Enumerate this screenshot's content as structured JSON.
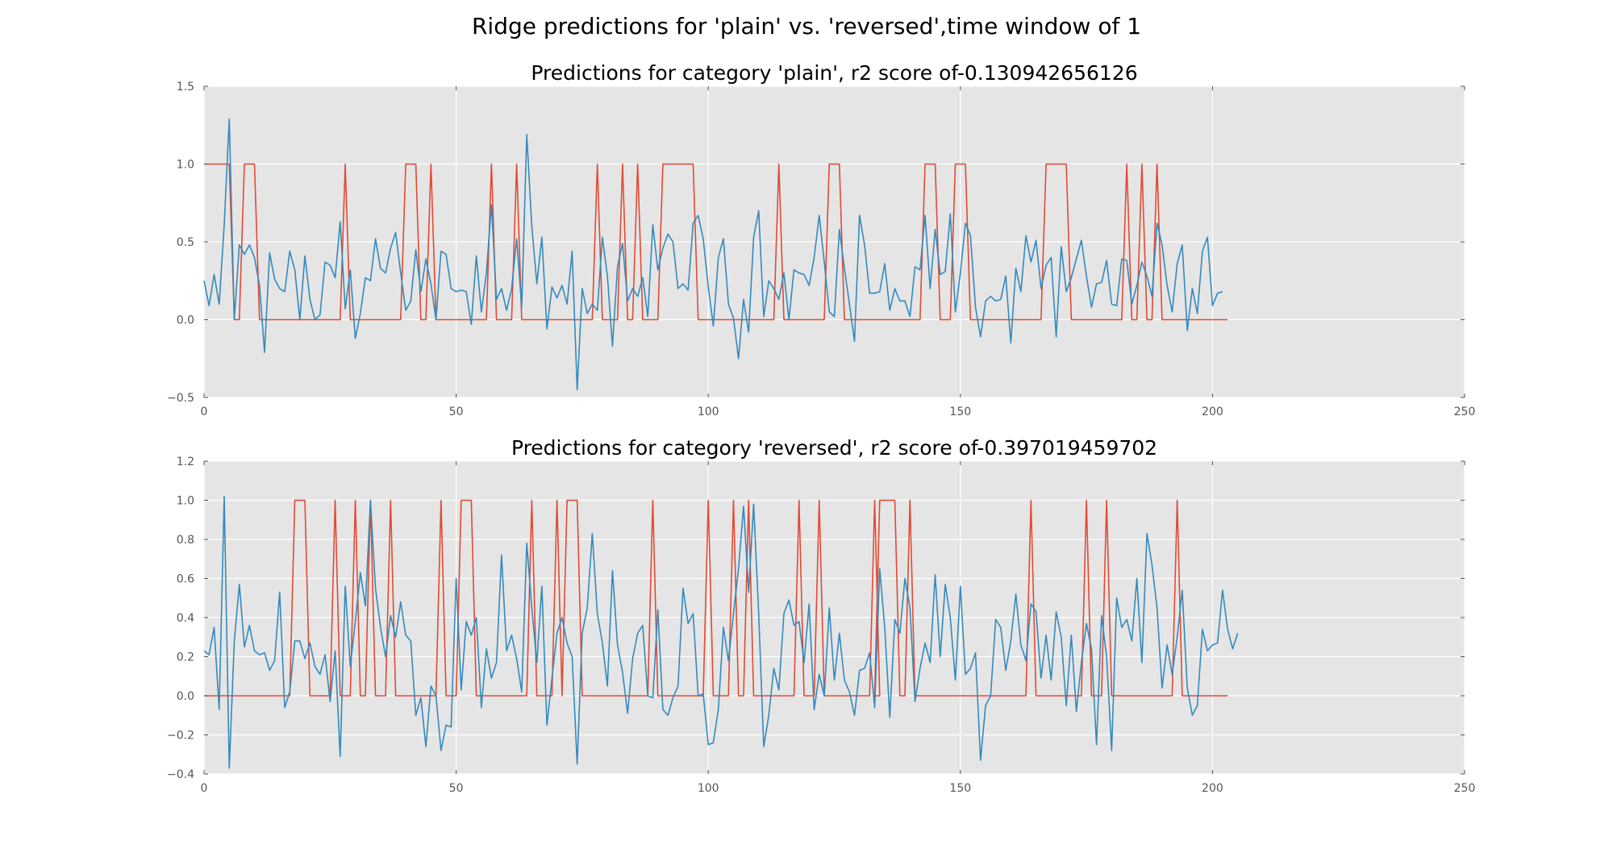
{
  "suptitle": "Ridge predictions for 'plain' vs. 'reversed',time window of 1",
  "colors": {
    "actual": "#e24a33",
    "predicted": "#348abd",
    "background": "#e5e5e5",
    "grid": "#ffffff"
  },
  "chart_data": [
    {
      "type": "line",
      "title": "Predictions for category 'plain', r2 score of-0.130942656126",
      "xlabel": "",
      "ylabel": "",
      "xlim": [
        0,
        250
      ],
      "ylim": [
        -0.5,
        1.5
      ],
      "xticks": [
        0,
        50,
        100,
        150,
        200,
        250
      ],
      "yticks": [
        -0.5,
        0.0,
        0.5,
        1.0,
        1.5
      ],
      "ytick_labels": [
        "−0.5",
        "0.0",
        "0.5",
        "1.0",
        "1.5"
      ],
      "xtick_labels": [
        "0",
        "50",
        "100",
        "150",
        "200",
        "250"
      ],
      "grid": true,
      "series": [
        {
          "color": "#e24a33",
          "step_intervals": [
            [
              0,
              5
            ],
            [
              7,
              10
            ],
            [
              27,
              28
            ],
            [
              39,
              42
            ],
            [
              44,
              45
            ],
            [
              56,
              57
            ],
            [
              61,
              62
            ],
            [
              77,
              78
            ],
            [
              82,
              83
            ],
            [
              85,
              86
            ],
            [
              90,
              97
            ],
            [
              113,
              114
            ],
            [
              123,
              126
            ],
            [
              142,
              145
            ],
            [
              148,
              151
            ],
            [
              166,
              171
            ],
            [
              182,
              183
            ],
            [
              185,
              186
            ],
            [
              188,
              189
            ]
          ],
          "x_end": 203
        },
        {
          "color": "#348abd",
          "values": [
            0.25,
            0.09,
            0.29,
            0.1,
            0.61,
            1.29,
            0.0,
            0.48,
            0.42,
            0.48,
            0.4,
            0.22,
            -0.21,
            0.43,
            0.26,
            0.2,
            0.18,
            0.44,
            0.32,
            0.0,
            0.41,
            0.13,
            0.0,
            0.03,
            0.37,
            0.35,
            0.27,
            0.63,
            0.07,
            0.32,
            -0.12,
            0.04,
            0.27,
            0.25,
            0.52,
            0.33,
            0.3,
            0.46,
            0.56,
            0.3,
            0.06,
            0.12,
            0.45,
            0.18,
            0.39,
            0.23,
            0.0,
            0.44,
            0.42,
            0.2,
            0.18,
            0.19,
            0.18,
            -0.03,
            0.41,
            0.05,
            0.3,
            0.74,
            0.13,
            0.2,
            0.06,
            0.2,
            0.52,
            0.08,
            1.19,
            0.6,
            0.23,
            0.53,
            -0.06,
            0.21,
            0.14,
            0.22,
            0.1,
            0.44,
            -0.45,
            0.2,
            0.04,
            0.1,
            0.06,
            0.53,
            0.28,
            -0.17,
            0.34,
            0.49,
            0.12,
            0.2,
            0.15,
            0.27,
            0.02,
            0.61,
            0.32,
            0.46,
            0.55,
            0.5,
            0.2,
            0.23,
            0.19,
            0.62,
            0.67,
            0.52,
            0.21,
            -0.04,
            0.4,
            0.52,
            0.1,
            0.01,
            -0.25,
            0.13,
            -0.08,
            0.53,
            0.7,
            0.02,
            0.25,
            0.2,
            0.13,
            0.3,
            0.0,
            0.32,
            0.3,
            0.29,
            0.22,
            0.4,
            0.67,
            0.37,
            0.05,
            0.02,
            0.58,
            0.33,
            0.1,
            -0.14,
            0.67,
            0.48,
            0.17,
            0.17,
            0.18,
            0.36,
            0.06,
            0.2,
            0.12,
            0.12,
            0.02,
            0.34,
            0.32,
            0.67,
            0.2,
            0.58,
            0.29,
            0.31,
            0.68,
            0.05,
            0.3,
            0.62,
            0.54,
            0.08,
            -0.11,
            0.12,
            0.15,
            0.12,
            0.13,
            0.28,
            -0.15,
            0.33,
            0.18,
            0.54,
            0.37,
            0.51,
            0.2,
            0.35,
            0.4,
            -0.11,
            0.47,
            0.18,
            0.27,
            0.39,
            0.51,
            0.28,
            0.08,
            0.23,
            0.24,
            0.38,
            0.1,
            0.09,
            0.39,
            0.38,
            0.1,
            0.22,
            0.37,
            0.28,
            0.15,
            0.62,
            0.48,
            0.22,
            0.05,
            0.36,
            0.48,
            -0.07,
            0.2,
            0.04,
            0.44,
            0.53,
            0.09,
            0.17,
            0.18
          ]
        }
      ]
    },
    {
      "type": "line",
      "title": "Predictions for category 'reversed', r2 score of-0.397019459702",
      "xlabel": "",
      "ylabel": "",
      "xlim": [
        0,
        250
      ],
      "ylim": [
        -0.4,
        1.2
      ],
      "xticks": [
        0,
        50,
        100,
        150,
        200,
        250
      ],
      "yticks": [
        -0.4,
        -0.2,
        0.0,
        0.2,
        0.4,
        0.6,
        0.8,
        1.0,
        1.2
      ],
      "ytick_labels": [
        "−0.4",
        "−0.2",
        "0.0",
        "0.2",
        "0.4",
        "0.6",
        "0.8",
        "1.0",
        "1.2"
      ],
      "xtick_labels": [
        "0",
        "50",
        "100",
        "150",
        "200",
        "250"
      ],
      "grid": true,
      "series": [
        {
          "color": "#e24a33",
          "step_intervals": [
            [
              17,
              20
            ],
            [
              25,
              26
            ],
            [
              29,
              30
            ],
            [
              32,
              33
            ],
            [
              36,
              37
            ],
            [
              46,
              47
            ],
            [
              50,
              53
            ],
            [
              64,
              65
            ],
            [
              69,
              70
            ],
            [
              71,
              74
            ],
            [
              88,
              89
            ],
            [
              99,
              100
            ],
            [
              104,
              105
            ],
            [
              107,
              108
            ],
            [
              117,
              118
            ],
            [
              121,
              122
            ],
            [
              132,
              133
            ],
            [
              133,
              137
            ],
            [
              139,
              140
            ],
            [
              163,
              164
            ],
            [
              174,
              175
            ],
            [
              178,
              179
            ],
            [
              192,
              193
            ]
          ],
          "x_end": 203
        },
        {
          "color": "#348abd",
          "values": [
            0.23,
            0.21,
            0.35,
            -0.07,
            1.02,
            -0.37,
            0.28,
            0.57,
            0.25,
            0.36,
            0.23,
            0.21,
            0.22,
            0.13,
            0.18,
            0.53,
            -0.06,
            0.02,
            0.28,
            0.28,
            0.19,
            0.27,
            0.15,
            0.11,
            0.21,
            -0.03,
            0.23,
            -0.31,
            0.56,
            0.15,
            0.38,
            0.63,
            0.46,
            1.0,
            0.55,
            0.35,
            0.2,
            0.41,
            0.3,
            0.48,
            0.31,
            0.28,
            -0.1,
            -0.01,
            -0.26,
            0.05,
            0.0,
            -0.28,
            -0.15,
            -0.16,
            0.6,
            0.03,
            0.38,
            0.31,
            0.4,
            -0.06,
            0.24,
            0.09,
            0.17,
            0.72,
            0.23,
            0.31,
            0.19,
            0.02,
            0.78,
            0.45,
            0.17,
            0.56,
            -0.15,
            0.09,
            0.32,
            0.4,
            0.27,
            0.2,
            -0.35,
            0.32,
            0.45,
            0.83,
            0.42,
            0.27,
            0.05,
            0.64,
            0.26,
            0.12,
            -0.09,
            0.19,
            0.32,
            0.36,
            0.0,
            -0.01,
            0.44,
            -0.07,
            -0.1,
            -0.01,
            0.05,
            0.55,
            0.37,
            0.42,
            0.0,
            0.01,
            -0.25,
            -0.24,
            -0.07,
            0.35,
            0.18,
            0.42,
            0.65,
            0.97,
            0.53,
            0.98,
            0.42,
            -0.26,
            -0.1,
            0.14,
            0.03,
            0.42,
            0.49,
            0.36,
            0.38,
            0.17,
            0.47,
            -0.07,
            0.11,
            0.0,
            0.45,
            0.08,
            0.32,
            0.08,
            0.02,
            -0.1,
            0.13,
            0.14,
            0.22,
            -0.06,
            0.65,
            0.35,
            -0.11,
            0.39,
            0.32,
            0.6,
            0.45,
            -0.03,
            0.14,
            0.27,
            0.17,
            0.62,
            0.2,
            0.57,
            0.4,
            0.08,
            0.56,
            0.11,
            0.14,
            0.22,
            -0.33,
            -0.05,
            0.0,
            0.39,
            0.35,
            0.13,
            0.28,
            0.52,
            0.26,
            0.18,
            0.47,
            0.43,
            0.09,
            0.31,
            0.08,
            0.43,
            0.3,
            -0.05,
            0.31,
            -0.08,
            0.17,
            0.37,
            0.24,
            -0.25,
            0.41,
            0.2,
            -0.28,
            0.5,
            0.35,
            0.39,
            0.28,
            0.6,
            0.17,
            0.83,
            0.67,
            0.45,
            0.04,
            0.26,
            0.11,
            0.3,
            0.54,
            0.04,
            -0.1,
            -0.05,
            0.34,
            0.23,
            0.26,
            0.27,
            0.54,
            0.34,
            0.24,
            0.32
          ]
        }
      ]
    }
  ]
}
